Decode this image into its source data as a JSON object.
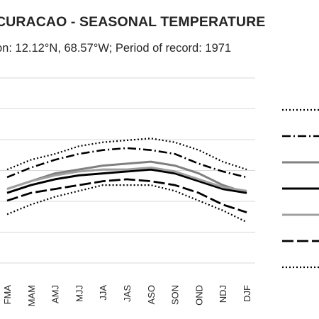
{
  "chart_data": {
    "type": "line",
    "title": "CURACAO - SEASONAL TEMPERATURE",
    "subtitle": "on: 12.12°N, 68.57°W; Period of record: 1971",
    "categories": [
      "FMA",
      "MAM",
      "AMJ",
      "MJJ",
      "JJA",
      "JAS",
      "ASO",
      "SON",
      "OND",
      "NDJ",
      "DJF"
    ],
    "ylim": [
      23,
      32.5
    ],
    "grid": true,
    "legend_position": "right",
    "series": [
      {
        "values": [
          27.8,
          28.3,
          28.6,
          29.0,
          29.2,
          29.3,
          29.4,
          29.2,
          28.8,
          28.2,
          27.8
        ],
        "color": "#000000",
        "dash": "2 3",
        "width": 2.2
      },
      {
        "values": [
          27.4,
          27.9,
          28.3,
          28.6,
          28.8,
          28.9,
          28.8,
          28.6,
          28.1,
          27.7,
          27.4
        ],
        "color": "#000000",
        "dash": "12 4 2 4",
        "width": 2.6
      },
      {
        "values": [
          26.8,
          27.2,
          27.6,
          27.8,
          28.0,
          28.1,
          28.2,
          28.0,
          27.6,
          27.0,
          26.6
        ],
        "color": "#808080",
        "dash": "",
        "width": 3.0
      },
      {
        "values": [
          26.6,
          27.0,
          27.3,
          27.5,
          27.6,
          27.7,
          27.8,
          27.6,
          27.2,
          26.8,
          26.6
        ],
        "color": "#000000",
        "dash": "",
        "width": 3.0
      },
      {
        "values": [
          26.8,
          27.2,
          27.5,
          27.7,
          27.8,
          27.8,
          27.9,
          27.7,
          27.3,
          26.9,
          26.7
        ],
        "color": "#a0a0a0",
        "dash": "",
        "width": 3.0
      },
      {
        "values": [
          26.2,
          26.6,
          26.8,
          27.0,
          27.2,
          27.3,
          27.2,
          27.0,
          26.6,
          26.0,
          25.6
        ],
        "color": "#000000",
        "dash": "16 5",
        "width": 2.8
      },
      {
        "values": [
          25.5,
          26.0,
          26.4,
          26.7,
          27.0,
          27.0,
          27.0,
          26.7,
          26.2,
          25.7,
          25.1
        ],
        "color": "#000000",
        "dash": "2 3",
        "width": 2.2
      }
    ]
  }
}
